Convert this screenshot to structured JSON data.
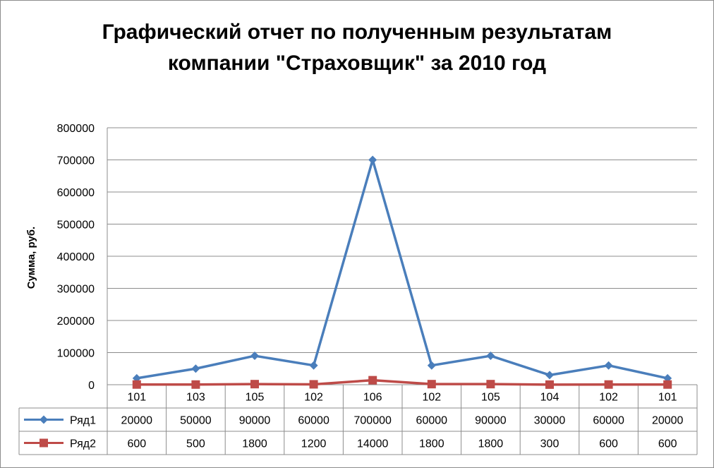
{
  "chart_data": {
    "type": "line",
    "title_lines": [
      "Графический отчет по полученным результатам",
      "компании \"Страховщик\" за 2010 год"
    ],
    "ylabel": "Сумма, руб.",
    "xlabel": "",
    "ylim": [
      0,
      800000
    ],
    "yticks": [
      0,
      100000,
      200000,
      300000,
      400000,
      500000,
      600000,
      700000,
      800000
    ],
    "grid": true,
    "legend_placement": "data-table",
    "categories": [
      "101",
      "103",
      "105",
      "102",
      "106",
      "102",
      "105",
      "104",
      "102",
      "101"
    ],
    "series": [
      {
        "name": "Ряд1",
        "color": "#4a7ebb",
        "marker": "diamond",
        "values": [
          20000,
          50000,
          90000,
          60000,
          700000,
          60000,
          90000,
          30000,
          60000,
          20000
        ]
      },
      {
        "name": "Ряд2",
        "color": "#be4b48",
        "marker": "square",
        "values": [
          600,
          500,
          1800,
          1200,
          14000,
          1800,
          1800,
          300,
          600,
          600
        ]
      }
    ]
  }
}
